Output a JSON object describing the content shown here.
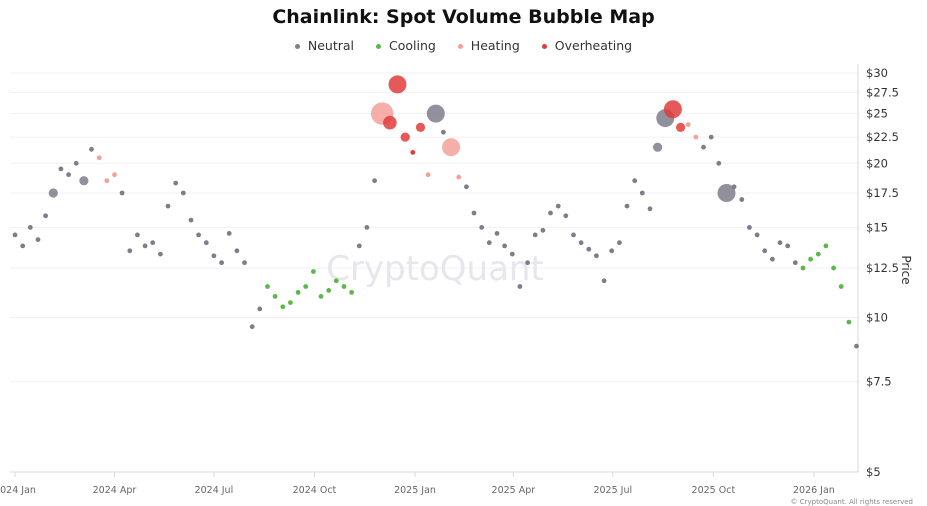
{
  "chart_data": {
    "type": "scatter",
    "title": "Chainlink: Spot Volume Bubble Map",
    "ylabel": "Price",
    "yscale": "log",
    "ylim": [
      5,
      30
    ],
    "y_ticks": [
      "$5",
      "$7.5",
      "$10",
      "$12.5",
      "$15",
      "$17.5",
      "$20",
      "$22.5",
      "$25",
      "$27.5",
      "$30"
    ],
    "y_tick_values": [
      5,
      7.5,
      10,
      12.5,
      15,
      17.5,
      20,
      22.5,
      25,
      27.5,
      30
    ],
    "x_ticks": [
      "2024 Jan",
      "2024 Apr",
      "2024 Jul",
      "2024 Oct",
      "2025 Jan",
      "2025 Apr",
      "2025 Jul",
      "2025 Oct",
      "2026 Jan"
    ],
    "x_tick_dates": [
      "2024-01-01",
      "2024-04-01",
      "2024-07-01",
      "2024-10-01",
      "2025-01-01",
      "2025-04-01",
      "2025-07-01",
      "2025-10-01",
      "2026-01-01"
    ],
    "y_axis_position": "right",
    "grid": true,
    "legend_position": "top",
    "legend": [
      {
        "key": "N",
        "name": "Neutral",
        "color": "#7f7c8c"
      },
      {
        "key": "C",
        "name": "Cooling",
        "color": "#5cb84a"
      },
      {
        "key": "H",
        "name": "Heating",
        "color": "#f4a09a"
      },
      {
        "key": "O",
        "name": "Overheating",
        "color": "#e03c3c"
      }
    ],
    "point_fields": [
      "date",
      "price",
      "state",
      "relative_volume"
    ],
    "points": [
      [
        "2024-01-01",
        14.5,
        "N",
        1
      ],
      [
        "2024-01-08",
        13.8,
        "N",
        1
      ],
      [
        "2024-01-15",
        15.0,
        "N",
        1
      ],
      [
        "2024-01-22",
        14.2,
        "N",
        1
      ],
      [
        "2024-01-29",
        15.8,
        "N",
        1
      ],
      [
        "2024-02-05",
        17.5,
        "N",
        2
      ],
      [
        "2024-02-12",
        19.5,
        "N",
        1
      ],
      [
        "2024-02-19",
        19.0,
        "N",
        1
      ],
      [
        "2024-02-26",
        20.0,
        "N",
        1
      ],
      [
        "2024-03-04",
        18.5,
        "N",
        2
      ],
      [
        "2024-03-11",
        21.3,
        "N",
        1
      ],
      [
        "2024-03-18",
        20.5,
        "H",
        1
      ],
      [
        "2024-03-25",
        18.5,
        "H",
        1
      ],
      [
        "2024-04-01",
        19.0,
        "H",
        1
      ],
      [
        "2024-04-08",
        17.5,
        "N",
        1
      ],
      [
        "2024-04-15",
        13.5,
        "N",
        1
      ],
      [
        "2024-04-22",
        14.5,
        "N",
        1
      ],
      [
        "2024-04-29",
        13.8,
        "N",
        1
      ],
      [
        "2024-05-06",
        14.0,
        "N",
        1
      ],
      [
        "2024-05-13",
        13.3,
        "N",
        1
      ],
      [
        "2024-05-20",
        16.5,
        "N",
        1
      ],
      [
        "2024-05-27",
        18.3,
        "N",
        1
      ],
      [
        "2024-06-03",
        17.5,
        "N",
        1
      ],
      [
        "2024-06-10",
        15.5,
        "N",
        1
      ],
      [
        "2024-06-17",
        14.5,
        "N",
        1
      ],
      [
        "2024-06-24",
        14.0,
        "N",
        1
      ],
      [
        "2024-07-01",
        13.2,
        "N",
        1
      ],
      [
        "2024-07-08",
        12.8,
        "N",
        1
      ],
      [
        "2024-07-15",
        14.6,
        "N",
        1
      ],
      [
        "2024-07-22",
        13.5,
        "N",
        1
      ],
      [
        "2024-07-29",
        12.8,
        "N",
        1
      ],
      [
        "2024-08-05",
        9.6,
        "N",
        1
      ],
      [
        "2024-08-12",
        10.4,
        "N",
        1
      ],
      [
        "2024-08-19",
        11.5,
        "C",
        1
      ],
      [
        "2024-08-26",
        11.0,
        "C",
        1
      ],
      [
        "2024-09-02",
        10.5,
        "C",
        1
      ],
      [
        "2024-09-09",
        10.7,
        "C",
        1
      ],
      [
        "2024-09-16",
        11.2,
        "C",
        1
      ],
      [
        "2024-09-23",
        11.5,
        "C",
        1
      ],
      [
        "2024-09-30",
        12.3,
        "C",
        1
      ],
      [
        "2024-10-07",
        11.0,
        "C",
        1
      ],
      [
        "2024-10-14",
        11.3,
        "C",
        1
      ],
      [
        "2024-10-21",
        11.8,
        "C",
        1
      ],
      [
        "2024-10-28",
        11.5,
        "C",
        1
      ],
      [
        "2024-11-04",
        11.2,
        "C",
        1
      ],
      [
        "2024-11-11",
        13.8,
        "N",
        1
      ],
      [
        "2024-11-18",
        15.0,
        "N",
        1
      ],
      [
        "2024-11-25",
        18.5,
        "N",
        1
      ],
      [
        "2024-12-02",
        25.0,
        "H",
        5
      ],
      [
        "2024-12-09",
        24.0,
        "O",
        3
      ],
      [
        "2024-12-16",
        28.5,
        "O",
        4
      ],
      [
        "2024-12-23",
        22.5,
        "O",
        2
      ],
      [
        "2024-12-30",
        21.0,
        "O",
        1
      ],
      [
        "2025-01-06",
        23.5,
        "O",
        2
      ],
      [
        "2025-01-13",
        19.0,
        "H",
        1
      ],
      [
        "2025-01-20",
        25.0,
        "N",
        4
      ],
      [
        "2025-01-27",
        23.0,
        "N",
        1
      ],
      [
        "2025-02-03",
        21.5,
        "H",
        4
      ],
      [
        "2025-02-10",
        18.8,
        "H",
        1
      ],
      [
        "2025-02-17",
        18.0,
        "N",
        1
      ],
      [
        "2025-02-24",
        16.0,
        "N",
        1
      ],
      [
        "2025-03-03",
        15.0,
        "N",
        1
      ],
      [
        "2025-03-10",
        14.0,
        "N",
        1
      ],
      [
        "2025-03-17",
        14.6,
        "N",
        1
      ],
      [
        "2025-03-24",
        13.8,
        "N",
        1
      ],
      [
        "2025-03-31",
        13.3,
        "N",
        1
      ],
      [
        "2025-04-07",
        11.5,
        "N",
        1
      ],
      [
        "2025-04-14",
        12.8,
        "N",
        1
      ],
      [
        "2025-04-21",
        14.5,
        "N",
        1
      ],
      [
        "2025-04-28",
        14.8,
        "N",
        1
      ],
      [
        "2025-05-05",
        16.0,
        "N",
        1
      ],
      [
        "2025-05-12",
        16.5,
        "N",
        1
      ],
      [
        "2025-05-19",
        15.8,
        "N",
        1
      ],
      [
        "2025-05-26",
        14.5,
        "N",
        1
      ],
      [
        "2025-06-02",
        14.0,
        "N",
        1
      ],
      [
        "2025-06-09",
        13.6,
        "N",
        1
      ],
      [
        "2025-06-16",
        13.2,
        "N",
        1
      ],
      [
        "2025-06-23",
        11.8,
        "N",
        1
      ],
      [
        "2025-06-30",
        13.5,
        "N",
        1
      ],
      [
        "2025-07-07",
        14.0,
        "N",
        1
      ],
      [
        "2025-07-14",
        16.5,
        "N",
        1
      ],
      [
        "2025-07-21",
        18.5,
        "N",
        1
      ],
      [
        "2025-07-28",
        17.5,
        "N",
        1
      ],
      [
        "2025-08-04",
        16.3,
        "N",
        1
      ],
      [
        "2025-08-11",
        21.5,
        "N",
        2
      ],
      [
        "2025-08-18",
        24.5,
        "N",
        4
      ],
      [
        "2025-08-25",
        25.5,
        "O",
        4
      ],
      [
        "2025-09-01",
        23.5,
        "O",
        2
      ],
      [
        "2025-09-08",
        23.8,
        "H",
        1
      ],
      [
        "2025-09-15",
        22.5,
        "H",
        1
      ],
      [
        "2025-09-22",
        21.5,
        "N",
        1
      ],
      [
        "2025-09-29",
        22.5,
        "N",
        1
      ],
      [
        "2025-10-06",
        20.0,
        "N",
        1
      ],
      [
        "2025-10-13",
        17.5,
        "N",
        4
      ],
      [
        "2025-10-20",
        18.0,
        "N",
        1
      ],
      [
        "2025-10-27",
        17.0,
        "N",
        1
      ],
      [
        "2025-11-03",
        15.0,
        "N",
        1
      ],
      [
        "2025-11-10",
        14.5,
        "N",
        1
      ],
      [
        "2025-11-17",
        13.5,
        "N",
        1
      ],
      [
        "2025-11-24",
        13.0,
        "N",
        1
      ],
      [
        "2025-12-01",
        14.0,
        "N",
        1
      ],
      [
        "2025-12-08",
        13.8,
        "N",
        1
      ],
      [
        "2025-12-15",
        12.8,
        "N",
        1
      ],
      [
        "2025-12-22",
        12.5,
        "C",
        1
      ],
      [
        "2025-12-29",
        13.0,
        "C",
        1
      ],
      [
        "2026-01-05",
        13.3,
        "C",
        1
      ],
      [
        "2026-01-12",
        13.8,
        "C",
        1
      ],
      [
        "2026-01-19",
        12.5,
        "C",
        1
      ],
      [
        "2026-01-26",
        11.5,
        "C",
        1
      ],
      [
        "2026-02-02",
        9.8,
        "C",
        1
      ],
      [
        "2026-02-09",
        8.8,
        "N",
        1
      ]
    ]
  },
  "watermark": "CryptoQuant",
  "copyright": "© CryptoQuant. All rights reserved"
}
